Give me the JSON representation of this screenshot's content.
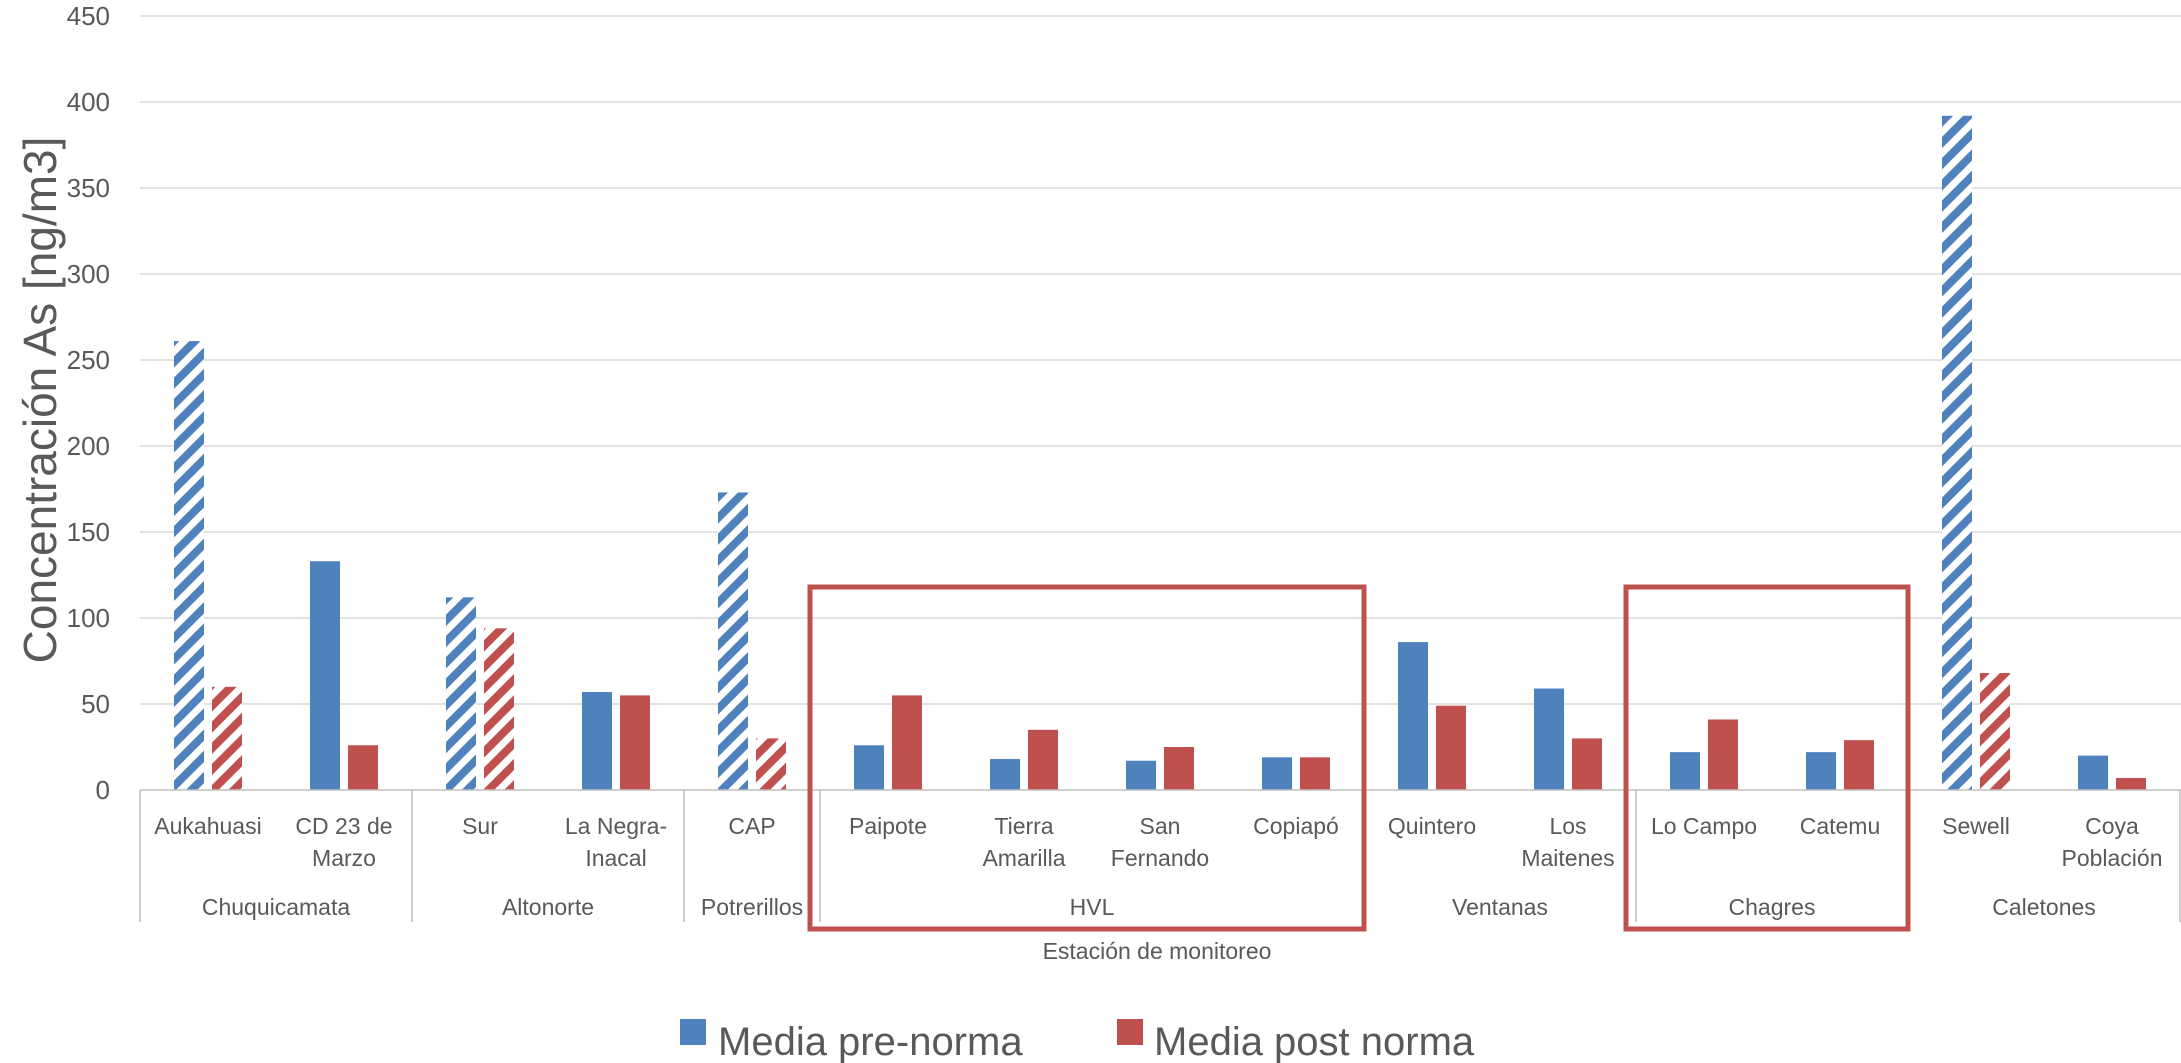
{
  "chart_data": {
    "type": "bar",
    "xlabel": "Estación de monitoreo",
    "ylabel": "Concentración As [ng/m3]",
    "ylim": [
      0,
      450
    ],
    "yticks": [
      0,
      50,
      100,
      150,
      200,
      250,
      300,
      350,
      400,
      450
    ],
    "grid": true,
    "legend_position": "bottom",
    "colors": {
      "pre": "#4F81BD",
      "post": "#C0504D",
      "highlight": "#C0504D",
      "grid": "#D9D9D9",
      "axis": "#BFBFBF"
    },
    "series": [
      {
        "name": "Media pre-norma",
        "key": "pre"
      },
      {
        "name": "Media post norma",
        "key": "post"
      }
    ],
    "groups": [
      {
        "name": "Chuquicamata",
        "highlight": false,
        "stations": [
          {
            "label": [
              "Aukahuasi"
            ],
            "pre": 261,
            "post": 60,
            "pre_hatched": true,
            "post_hatched": true
          },
          {
            "label": [
              "CD 23 de",
              "Marzo"
            ],
            "pre": 133,
            "post": 26,
            "pre_hatched": false,
            "post_hatched": false
          }
        ]
      },
      {
        "name": "Altonorte",
        "highlight": false,
        "stations": [
          {
            "label": [
              "Sur"
            ],
            "pre": 112,
            "post": 94,
            "pre_hatched": true,
            "post_hatched": true
          },
          {
            "label": [
              "La Negra-",
              "Inacal"
            ],
            "pre": 57,
            "post": 55,
            "pre_hatched": false,
            "post_hatched": false
          }
        ]
      },
      {
        "name": "Potrerillos",
        "highlight": false,
        "stations": [
          {
            "label": [
              "CAP"
            ],
            "pre": 173,
            "post": 30,
            "pre_hatched": true,
            "post_hatched": true
          }
        ]
      },
      {
        "name": "HVL",
        "highlight": true,
        "stations": [
          {
            "label": [
              "Paipote"
            ],
            "pre": 26,
            "post": 55,
            "pre_hatched": false,
            "post_hatched": false
          },
          {
            "label": [
              "Tierra",
              "Amarilla"
            ],
            "pre": 18,
            "post": 35,
            "pre_hatched": false,
            "post_hatched": false
          },
          {
            "label": [
              "San",
              "Fernando"
            ],
            "pre": 17,
            "post": 25,
            "pre_hatched": false,
            "post_hatched": false
          },
          {
            "label": [
              "Copiapó"
            ],
            "pre": 19,
            "post": 19,
            "pre_hatched": false,
            "post_hatched": false
          }
        ]
      },
      {
        "name": "Ventanas",
        "highlight": false,
        "stations": [
          {
            "label": [
              "Quintero"
            ],
            "pre": 86,
            "post": 49,
            "pre_hatched": false,
            "post_hatched": false
          },
          {
            "label": [
              "Los",
              "Maitenes"
            ],
            "pre": 59,
            "post": 30,
            "pre_hatched": false,
            "post_hatched": false
          }
        ]
      },
      {
        "name": "Chagres",
        "highlight": true,
        "stations": [
          {
            "label": [
              "Lo Campo"
            ],
            "pre": 22,
            "post": 41,
            "pre_hatched": false,
            "post_hatched": false
          },
          {
            "label": [
              "Catemu"
            ],
            "pre": 22,
            "post": 29,
            "pre_hatched": false,
            "post_hatched": false
          }
        ]
      },
      {
        "name": "Caletones",
        "highlight": false,
        "stations": [
          {
            "label": [
              "Sewell"
            ],
            "pre": 392,
            "post": 68,
            "pre_hatched": true,
            "post_hatched": true
          },
          {
            "label": [
              "Coya",
              "Población"
            ],
            "pre": 20,
            "post": 7,
            "pre_hatched": false,
            "post_hatched": false
          }
        ]
      }
    ]
  }
}
